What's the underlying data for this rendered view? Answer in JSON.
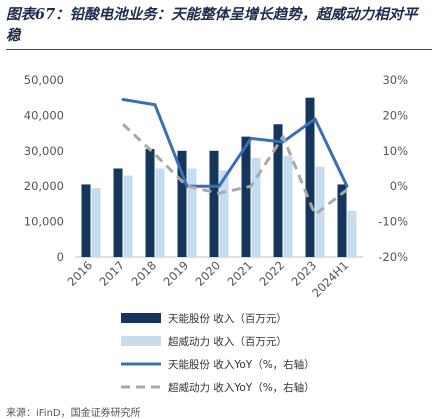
{
  "figure_title": "图表67：铅酸电池业务：天能整体呈增长趋势，超威动力相对平稳",
  "source_text": "来源：iFinD，国金证券研究所",
  "chart_data": {
    "type": "bar+line",
    "title": "图表67：铅酸电池业务：天能整体呈增长趋势，超威动力相对平稳",
    "categories": [
      "2016",
      "2017",
      "2018",
      "2019",
      "2020",
      "2021",
      "2022",
      "2023",
      "2024H1"
    ],
    "left_axis": {
      "ylim": [
        0,
        50000
      ],
      "ticks": [
        "0",
        "10,000",
        "20,000",
        "30,000",
        "40,000",
        "50,000"
      ]
    },
    "right_axis": {
      "ylim": [
        -20,
        30
      ],
      "ticks": [
        "-20%",
        "-10%",
        "0%",
        "10%",
        "20%",
        "30%"
      ]
    },
    "series": [
      {
        "name": "天能股份 收入（百万元）",
        "kind": "bar",
        "axis": "left",
        "color": "#14365c",
        "values": [
          20500,
          25000,
          30500,
          30000,
          30000,
          34000,
          37500,
          45000,
          20500
        ]
      },
      {
        "name": "超威动力 收入（百万元）",
        "kind": "bar",
        "axis": "left",
        "color": "#c6dcef",
        "values": [
          19500,
          23000,
          25000,
          25000,
          24500,
          28000,
          28500,
          25500,
          13000
        ]
      },
      {
        "name": "天能股份 收入YoY（%，右轴）",
        "kind": "line",
        "axis": "right",
        "color": "#3b6fb4",
        "values": [
          null,
          24.5,
          23,
          0,
          0,
          13.5,
          12.5,
          19,
          0
        ]
      },
      {
        "name": "超威动力 收入YoY（%，右轴）",
        "kind": "line-dashed",
        "axis": "right",
        "color": "#a9a9a9",
        "values": [
          null,
          17.5,
          9,
          0,
          -2,
          0,
          14,
          -8,
          -1
        ]
      }
    ],
    "legend_position": "bottom",
    "grid": false
  }
}
